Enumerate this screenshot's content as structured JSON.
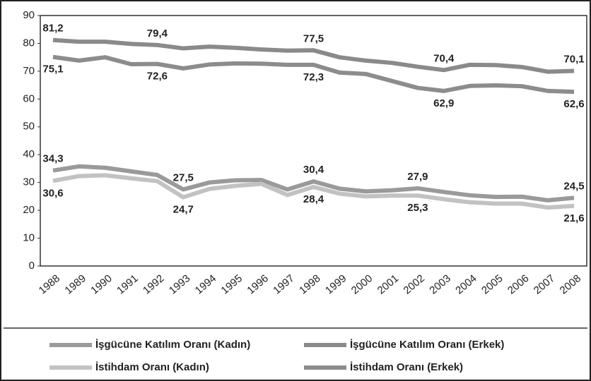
{
  "chart_data": {
    "type": "line",
    "categories": [
      "1988",
      "1989",
      "1990",
      "1991",
      "1992",
      "1993",
      "1994",
      "1995",
      "1996",
      "1997",
      "1998",
      "1999",
      "2000",
      "2001",
      "2002",
      "2003",
      "2004",
      "2005",
      "2006",
      "2007",
      "2008"
    ],
    "ylim": [
      0,
      90
    ],
    "yticks": [
      0,
      10,
      20,
      30,
      40,
      50,
      60,
      70,
      80,
      90
    ],
    "series": [
      {
        "name": "İşgücüne Katılım Oranı (Kadın)",
        "color": "#9a9a9a",
        "values": [
          34.3,
          35.8,
          35.3,
          34.0,
          32.7,
          27.5,
          30.0,
          30.8,
          30.9,
          27.5,
          30.4,
          27.8,
          26.8,
          27.2,
          27.9,
          26.6,
          25.4,
          24.8,
          24.9,
          23.6,
          24.5
        ],
        "value_labels": [
          "34,3",
          null,
          null,
          null,
          null,
          "27,5",
          null,
          null,
          null,
          null,
          "30,4",
          null,
          null,
          null,
          "27,9",
          null,
          null,
          null,
          null,
          null,
          "24,5"
        ]
      },
      {
        "name": "İşgücüne Katılım Oranı (Erkek)",
        "color": "#8a8a8a",
        "values": [
          81.2,
          80.6,
          80.6,
          79.8,
          79.4,
          78.2,
          78.8,
          78.4,
          77.8,
          77.4,
          77.5,
          75.0,
          73.8,
          73.0,
          71.6,
          70.4,
          72.3,
          72.2,
          71.5,
          69.8,
          70.1
        ],
        "value_labels": [
          "81,2",
          null,
          null,
          null,
          "79,4",
          null,
          null,
          null,
          null,
          null,
          "77,5",
          null,
          null,
          null,
          null,
          "70,4",
          null,
          null,
          null,
          null,
          "70,1"
        ]
      },
      {
        "name": "İstihdam Oranı (Kadın)",
        "color": "#c2c2c2",
        "values": [
          30.6,
          32.3,
          32.6,
          31.5,
          30.5,
          24.7,
          27.7,
          28.8,
          29.5,
          25.5,
          28.4,
          26.0,
          25.0,
          25.3,
          25.3,
          24.0,
          22.9,
          22.4,
          22.4,
          21.0,
          21.6
        ],
        "value_labels": [
          "30,6",
          null,
          null,
          null,
          null,
          "24,7",
          null,
          null,
          null,
          null,
          "28,4",
          null,
          null,
          null,
          "25,3",
          null,
          null,
          null,
          null,
          null,
          "21,6"
        ]
      },
      {
        "name": "İstihdam Oranı (Erkek)",
        "color": "#8c8c8c",
        "values": [
          75.1,
          73.8,
          75.0,
          72.5,
          72.6,
          71.0,
          72.4,
          72.8,
          72.7,
          72.3,
          72.3,
          69.5,
          69.0,
          66.5,
          64.0,
          62.9,
          64.7,
          64.9,
          64.6,
          62.9,
          62.6
        ],
        "value_labels": [
          "75,1",
          null,
          null,
          null,
          "72,6",
          null,
          null,
          null,
          null,
          null,
          "72,3",
          null,
          null,
          null,
          null,
          "62,9",
          null,
          null,
          null,
          null,
          "62,6"
        ]
      }
    ]
  }
}
